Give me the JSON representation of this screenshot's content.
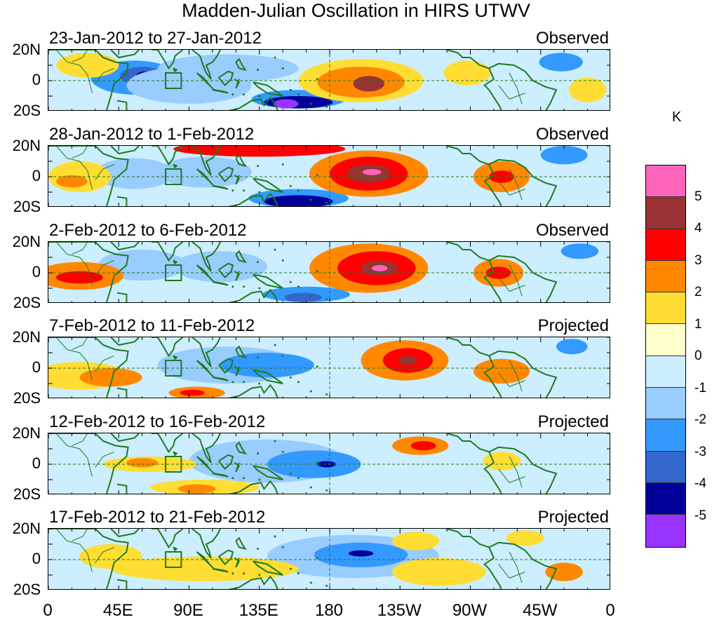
{
  "title": "Madden-Julian Oscillation in HIRS UTWV",
  "colors": {
    "coast": "#1f7a1f",
    "levels": [
      "#9933ff",
      "#000099",
      "#3366cc",
      "#3399ff",
      "#99ccff",
      "#cceeff",
      "#ffffcc",
      "#ffdd33",
      "#ff8800",
      "#ff0000",
      "#993333",
      "#ff66bb"
    ]
  },
  "legend": {
    "unit": "K",
    "ticks": [
      "5",
      "4",
      "3",
      "2",
      "1",
      "0",
      "-1",
      "-2",
      "-3",
      "-4",
      "-5"
    ]
  },
  "lat_labels": [
    "20N",
    "0",
    "20S"
  ],
  "lon_labels": [
    "0",
    "45E",
    "90E",
    "135E",
    "180",
    "135W",
    "90W",
    "45W",
    "0"
  ],
  "panels": [
    {
      "dates": "23-Jan-2012 to 27-Jan-2012",
      "status": "Observed",
      "blobs": [
        {
          "lon": 55,
          "lat": 2,
          "rlon": 28,
          "rlat": 11,
          "level": 3
        },
        {
          "lon": 60,
          "lat": 3,
          "rlon": 14,
          "rlat": 6,
          "level": 2
        },
        {
          "lon": 62,
          "lat": 3,
          "rlon": 6,
          "rlat": 3,
          "level": 1
        },
        {
          "lon": 90,
          "lat": -3,
          "rlon": 40,
          "rlat": 12,
          "level": 4
        },
        {
          "lon": 115,
          "lat": 8,
          "rlon": 45,
          "rlat": 9,
          "level": 4
        },
        {
          "lon": 160,
          "lat": -12,
          "rlon": 30,
          "rlat": 6,
          "level": 3
        },
        {
          "lon": 160,
          "lat": -14,
          "rlon": 22,
          "rlat": 4,
          "level": 1
        },
        {
          "lon": 152,
          "lat": -15,
          "rlon": 8,
          "rlat": 3,
          "level": 0
        },
        {
          "lon": 25,
          "lat": 10,
          "rlon": 20,
          "rlat": 8,
          "level": 7
        },
        {
          "lon": 200,
          "lat": 0,
          "rlon": 40,
          "rlat": 14,
          "level": 7
        },
        {
          "lon": 200,
          "lat": -1,
          "rlon": 28,
          "rlat": 10,
          "level": 8
        },
        {
          "lon": 205,
          "lat": -2,
          "rlon": 10,
          "rlat": 5,
          "level": 10
        },
        {
          "lon": 268,
          "lat": 5,
          "rlon": 15,
          "rlat": 8,
          "level": 7
        },
        {
          "lon": 328,
          "lat": 12,
          "rlon": 14,
          "rlat": 6,
          "level": 3
        },
        {
          "lon": 345,
          "lat": -6,
          "rlon": 12,
          "rlat": 8,
          "level": 7
        }
      ]
    },
    {
      "dates": "28-Jan-2012 to 1-Feb-2012",
      "status": "Observed",
      "blobs": [
        {
          "lon": 55,
          "lat": 2,
          "rlon": 25,
          "rlat": 10,
          "level": 4
        },
        {
          "lon": 100,
          "lat": 3,
          "rlon": 30,
          "rlat": 10,
          "level": 4
        },
        {
          "lon": 160,
          "lat": -14,
          "rlon": 32,
          "rlat": 6,
          "level": 3
        },
        {
          "lon": 160,
          "lat": -16,
          "rlon": 22,
          "rlat": 4,
          "level": 1
        },
        {
          "lon": 20,
          "lat": 0,
          "rlon": 20,
          "rlat": 10,
          "level": 7
        },
        {
          "lon": 15,
          "lat": -3,
          "rlon": 10,
          "rlat": 4,
          "level": 8
        },
        {
          "lon": 135,
          "lat": 18,
          "rlon": 55,
          "rlat": 5,
          "level": 9
        },
        {
          "lon": 205,
          "lat": 2,
          "rlon": 38,
          "rlat": 15,
          "level": 8
        },
        {
          "lon": 205,
          "lat": 2,
          "rlon": 25,
          "rlat": 11,
          "level": 9
        },
        {
          "lon": 205,
          "lat": 2,
          "rlon": 14,
          "rlat": 6,
          "level": 10
        },
        {
          "lon": 207,
          "lat": 3,
          "rlon": 6,
          "rlat": 2,
          "level": 11
        },
        {
          "lon": 290,
          "lat": 0,
          "rlon": 18,
          "rlat": 10,
          "level": 8
        },
        {
          "lon": 290,
          "lat": 0,
          "rlon": 8,
          "rlat": 4,
          "level": 9
        },
        {
          "lon": 330,
          "lat": 14,
          "rlon": 15,
          "rlat": 6,
          "level": 3
        }
      ]
    },
    {
      "dates": "2-Feb-2012 to 6-Feb-2012",
      "status": "Observed",
      "blobs": [
        {
          "lon": 60,
          "lat": 5,
          "rlon": 28,
          "rlat": 10,
          "level": 4
        },
        {
          "lon": 110,
          "lat": 4,
          "rlon": 30,
          "rlat": 10,
          "level": 4
        },
        {
          "lon": 165,
          "lat": -14,
          "rlon": 28,
          "rlat": 5,
          "level": 3
        },
        {
          "lon": 163,
          "lat": -16,
          "rlon": 12,
          "rlat": 3,
          "level": 2
        },
        {
          "lon": 20,
          "lat": -2,
          "rlon": 28,
          "rlat": 9,
          "level": 8
        },
        {
          "lon": 20,
          "lat": -3,
          "rlon": 15,
          "rlat": 4,
          "level": 9
        },
        {
          "lon": 205,
          "lat": 3,
          "rlon": 38,
          "rlat": 16,
          "level": 8
        },
        {
          "lon": 210,
          "lat": 3,
          "rlon": 25,
          "rlat": 11,
          "level": 9
        },
        {
          "lon": 212,
          "lat": 3,
          "rlon": 12,
          "rlat": 5,
          "level": 10
        },
        {
          "lon": 212,
          "lat": 3,
          "rlon": 5,
          "rlat": 2,
          "level": 11
        },
        {
          "lon": 288,
          "lat": 0,
          "rlon": 16,
          "rlat": 9,
          "level": 8
        },
        {
          "lon": 288,
          "lat": 0,
          "rlon": 8,
          "rlat": 4,
          "level": 9
        },
        {
          "lon": 340,
          "lat": 14,
          "rlon": 12,
          "rlat": 5,
          "level": 3
        }
      ]
    },
    {
      "dates": "7-Feb-2012 to 11-Feb-2012",
      "status": "Projected",
      "blobs": [
        {
          "lon": 115,
          "lat": 2,
          "rlon": 45,
          "rlat": 12,
          "level": 4
        },
        {
          "lon": 140,
          "lat": 2,
          "rlon": 30,
          "rlat": 8,
          "level": 3
        },
        {
          "lon": 20,
          "lat": -5,
          "rlon": 30,
          "rlat": 9,
          "level": 7
        },
        {
          "lon": 40,
          "lat": -6,
          "rlon": 20,
          "rlat": 6,
          "level": 8
        },
        {
          "lon": 95,
          "lat": -16,
          "rlon": 18,
          "rlat": 4,
          "level": 8
        },
        {
          "lon": 92,
          "lat": -16,
          "rlon": 8,
          "rlat": 2,
          "level": 9
        },
        {
          "lon": 228,
          "lat": 5,
          "rlon": 28,
          "rlat": 13,
          "level": 8
        },
        {
          "lon": 230,
          "lat": 5,
          "rlon": 16,
          "rlat": 8,
          "level": 9
        },
        {
          "lon": 230,
          "lat": 5,
          "rlon": 6,
          "rlat": 3,
          "level": 10
        },
        {
          "lon": 290,
          "lat": -2,
          "rlon": 18,
          "rlat": 8,
          "level": 8
        },
        {
          "lon": 335,
          "lat": 14,
          "rlon": 10,
          "rlat": 5,
          "level": 3
        }
      ]
    },
    {
      "dates": "12-Feb-2012 to 16-Feb-2012",
      "status": "Projected",
      "blobs": [
        {
          "lon": 140,
          "lat": 2,
          "rlon": 50,
          "rlat": 14,
          "level": 4
        },
        {
          "lon": 170,
          "lat": 0,
          "rlon": 30,
          "rlat": 9,
          "level": 3
        },
        {
          "lon": 178,
          "lat": 0,
          "rlon": 6,
          "rlat": 2,
          "level": 1
        },
        {
          "lon": 65,
          "lat": 0,
          "rlon": 30,
          "rlat": 5,
          "level": 7
        },
        {
          "lon": 60,
          "lat": 1,
          "rlon": 10,
          "rlat": 3,
          "level": 8
        },
        {
          "lon": 100,
          "lat": -15,
          "rlon": 35,
          "rlat": 5,
          "level": 7
        },
        {
          "lon": 95,
          "lat": -16,
          "rlon": 12,
          "rlat": 3,
          "level": 8
        },
        {
          "lon": 238,
          "lat": 12,
          "rlon": 18,
          "rlat": 6,
          "level": 8
        },
        {
          "lon": 240,
          "lat": 12,
          "rlon": 8,
          "rlat": 3,
          "level": 9
        },
        {
          "lon": 290,
          "lat": 2,
          "rlon": 12,
          "rlat": 6,
          "level": 7
        }
      ]
    },
    {
      "dates": "17-Feb-2012 to 21-Feb-2012",
      "status": "Projected",
      "blobs": [
        {
          "lon": 195,
          "lat": 2,
          "rlon": 55,
          "rlat": 14,
          "level": 4
        },
        {
          "lon": 200,
          "lat": 3,
          "rlon": 30,
          "rlat": 8,
          "level": 3
        },
        {
          "lon": 200,
          "lat": 4,
          "rlon": 8,
          "rlat": 2,
          "level": 1
        },
        {
          "lon": 100,
          "lat": -6,
          "rlon": 60,
          "rlat": 8,
          "level": 7
        },
        {
          "lon": 40,
          "lat": 2,
          "rlon": 20,
          "rlat": 8,
          "level": 7
        },
        {
          "lon": 235,
          "lat": 12,
          "rlon": 15,
          "rlat": 6,
          "level": 7
        },
        {
          "lon": 250,
          "lat": -8,
          "rlon": 30,
          "rlat": 9,
          "level": 7
        },
        {
          "lon": 305,
          "lat": 14,
          "rlon": 12,
          "rlat": 5,
          "level": 7
        },
        {
          "lon": 330,
          "lat": -8,
          "rlon": 12,
          "rlat": 6,
          "level": 8
        }
      ]
    }
  ]
}
